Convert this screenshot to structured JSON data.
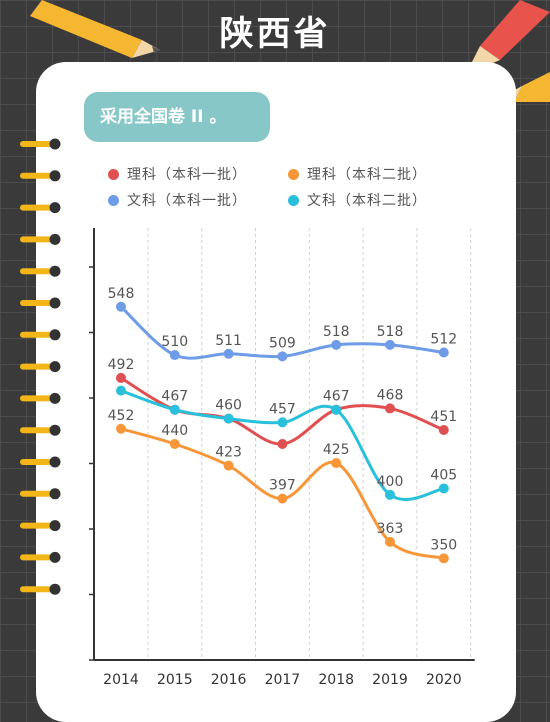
{
  "page": {
    "title": "陕西省",
    "badge": "采用全国卷 II 。"
  },
  "decor": {
    "pencil_color": "#f5b731",
    "pencil_red": "#e8544b",
    "ring_color": "#f2b619"
  },
  "chart_data": {
    "type": "line",
    "categories": [
      "2014",
      "2015",
      "2016",
      "2017",
      "2018",
      "2019",
      "2020"
    ],
    "ylim": [
      270,
      610
    ],
    "grid": "vertical-dashed",
    "legend_position": "top",
    "series": [
      {
        "name": "理科（本科一批）",
        "color": "#e05050",
        "values": [
          492,
          467,
          460,
          440,
          467,
          468,
          451
        ],
        "labels": [
          "492",
          "",
          "460",
          "",
          "467",
          "468",
          "451"
        ]
      },
      {
        "name": "理科（本科二批）",
        "color": "#f7973a",
        "values": [
          452,
          440,
          423,
          397,
          425,
          363,
          350
        ],
        "labels": [
          "452",
          "440",
          "423",
          "397",
          "425",
          "363",
          "350"
        ]
      },
      {
        "name": "文科（本科一批）",
        "color": "#6f9ce6",
        "values": [
          548,
          510,
          511,
          509,
          518,
          518,
          512
        ],
        "labels": [
          "548",
          "510",
          "511",
          "509",
          "518",
          "518",
          "512"
        ]
      },
      {
        "name": "文科（本科二批）",
        "color": "#29c0dc",
        "values": [
          482,
          467,
          460,
          457,
          467,
          400,
          405
        ],
        "labels": [
          "",
          "467",
          "",
          "457",
          "",
          "400",
          "405"
        ]
      }
    ]
  }
}
